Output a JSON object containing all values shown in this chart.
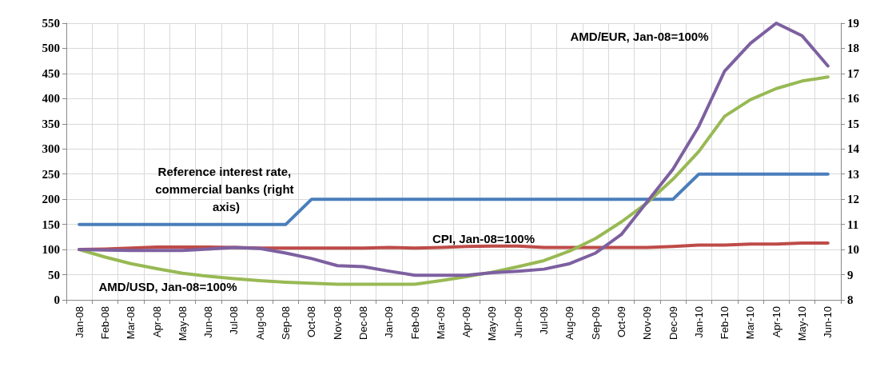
{
  "chart_data": {
    "type": "line",
    "categories": [
      "Jan-08",
      "Feb-08",
      "Mar-08",
      "Apr-08",
      "May-08",
      "Jun-08",
      "Jul-08",
      "Aug-08",
      "Sep-08",
      "Oct-08",
      "Nov-08",
      "Dec-08",
      "Jan-09",
      "Feb-09",
      "Mar-09",
      "Apr-09",
      "May-09",
      "Jun-09",
      "Jul-09",
      "Aug-09",
      "Sep-09",
      "Oct-09",
      "Nov-09",
      "Dec-09",
      "Jan-10",
      "Feb-10",
      "Mar-10",
      "Apr-10",
      "May-10",
      "Jun-10"
    ],
    "series": [
      {
        "color": "#4a7ebb",
        "axis": "y2",
        "values": [
          11,
          11,
          11,
          11,
          11,
          11,
          11,
          11,
          11,
          12,
          12,
          12,
          12,
          12,
          12,
          12,
          12,
          12,
          12,
          12,
          12,
          12,
          12,
          12,
          13,
          13,
          13,
          13,
          13,
          13
        ]
      },
      {
        "color": "#be4b48",
        "values": [
          100,
          101,
          103,
          105,
          105,
          105,
          104,
          103,
          103,
          103,
          103,
          103,
          104,
          103,
          104,
          106,
          107,
          107,
          104,
          104,
          104,
          104,
          104,
          106,
          109,
          109,
          111,
          111,
          113,
          113
        ]
      },
      {
        "color": "#98b954",
        "values": [
          100,
          85,
          72,
          62,
          53,
          47,
          42,
          38,
          35,
          33,
          31,
          31,
          31,
          31,
          38,
          46,
          55,
          66,
          78,
          97,
          122,
          155,
          193,
          240,
          295,
          365,
          398,
          420,
          435,
          443
        ]
      },
      {
        "color": "#7d60a0",
        "values": [
          100,
          99,
          98,
          98,
          98,
          101,
          104,
          102,
          93,
          82,
          68,
          66,
          57,
          49,
          49,
          49,
          54,
          57,
          61,
          72,
          93,
          130,
          195,
          260,
          345,
          455,
          510,
          550,
          525,
          465
        ]
      }
    ],
    "ylim": [
      0,
      550
    ],
    "yticks": [
      0,
      50,
      100,
      150,
      200,
      250,
      300,
      350,
      400,
      450,
      500,
      550
    ],
    "y2lim": [
      8,
      19
    ],
    "y2ticks": [
      8,
      9,
      10,
      11,
      12,
      13,
      14,
      15,
      16,
      17,
      18,
      19
    ],
    "grid": true,
    "marker": "none",
    "line_style": "solid",
    "annotations": [
      "Reference interest rate, commercial banks (right axis)",
      "CPI, Jan-08=100%",
      "AMD/USD, Jan-08=100%",
      "AMD/EUR, Jan-08=100%"
    ]
  }
}
